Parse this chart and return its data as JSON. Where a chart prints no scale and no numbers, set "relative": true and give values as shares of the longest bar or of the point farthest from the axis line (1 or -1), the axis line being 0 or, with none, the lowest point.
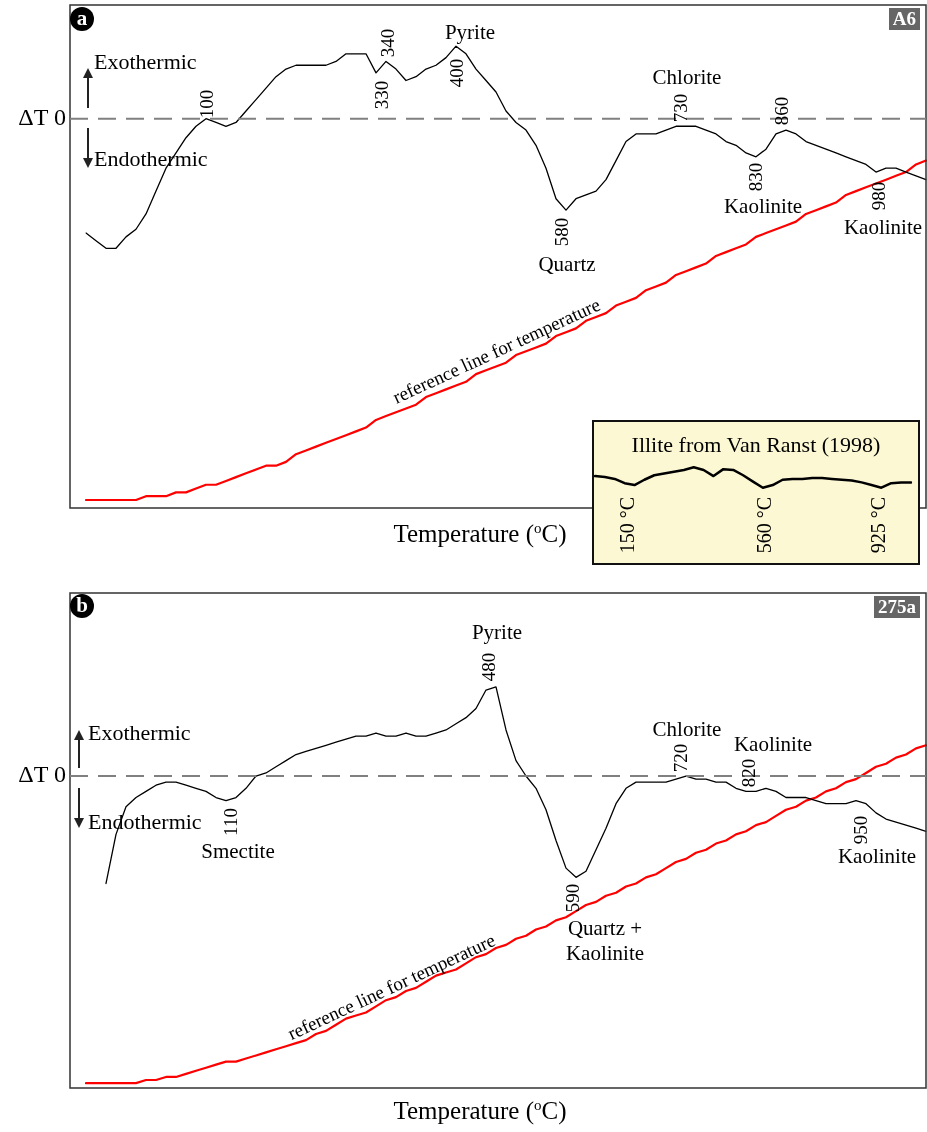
{
  "chart_data": [
    {
      "type": "line",
      "title": "a",
      "subtitle": "A6",
      "xlabel": "Temperature ($^{o}$C)",
      "relative": true,
      "tick_labels": false,
      "categories": [
        null,
        null,
        null,
        null,
        null,
        null,
        null,
        null,
        null,
        null,
        null,
        null,
        null,
        null,
        null,
        null,
        null,
        null,
        null,
        null,
        null,
        null,
        null,
        null,
        null,
        null,
        null,
        null,
        null,
        null,
        null,
        null,
        null,
        null,
        null,
        null,
        null,
        null,
        null,
        null,
        null,
        null,
        null,
        null,
        null,
        null,
        null,
        null,
        null,
        null,
        null,
        null,
        null,
        null,
        null,
        null,
        null,
        null,
        null,
        null,
        null,
        null,
        null,
        null,
        null,
        null,
        null,
        null,
        null,
        null,
        null,
        null,
        null,
        null,
        null,
        null,
        null,
        null,
        null,
        null,
        null,
        null,
        null,
        null,
        null
      ],
      "series": [
        {
          "color": "#000000",
          "values": [
            -0.3,
            -0.32,
            -0.34,
            -0.34,
            -0.31,
            -0.29,
            -0.25,
            -0.19,
            -0.13,
            -0.09,
            -0.05,
            -0.02,
            0,
            -0.01,
            -0.02,
            -0.01,
            0.02,
            0.05,
            0.08,
            0.11,
            0.13,
            0.14,
            0.14,
            0.14,
            0.14,
            0.15,
            0.17,
            0.17,
            0.17,
            0.12,
            0.15,
            0.13,
            0.1,
            0.11,
            0.13,
            0.14,
            0.16,
            0.19,
            0.17,
            0.13,
            0.1,
            0.07,
            0.02,
            -0.01,
            -0.03,
            -0.07,
            -0.13,
            -0.21,
            -0.24,
            -0.21,
            -0.2,
            -0.19,
            -0.16,
            -0.11,
            -0.06,
            -0.04,
            -0.04,
            -0.04,
            -0.03,
            -0.02,
            -0.02,
            -0.02,
            -0.03,
            -0.04,
            -0.06,
            -0.07,
            -0.09,
            -0.1,
            -0.08,
            -0.04,
            -0.03,
            -0.04,
            -0.06,
            -0.07,
            -0.08,
            -0.09,
            -0.1,
            -0.11,
            -0.12,
            -0.14,
            -0.13,
            -0.13,
            -0.14,
            -0.15,
            -0.16
          ]
        },
        {
          "color": "#ff0000",
          "values": [
            -1.0,
            -1.0,
            -1.0,
            -1.0,
            -1.0,
            -1.0,
            -0.99,
            -0.99,
            -0.99,
            -0.98,
            -0.98,
            -0.97,
            -0.96,
            -0.96,
            -0.95,
            -0.94,
            -0.93,
            -0.92,
            -0.91,
            -0.91,
            -0.9,
            -0.88,
            -0.87,
            -0.86,
            -0.85,
            -0.84,
            -0.83,
            -0.82,
            -0.81,
            -0.79,
            -0.78,
            -0.77,
            -0.76,
            -0.75,
            -0.73,
            -0.72,
            -0.71,
            -0.7,
            -0.69,
            -0.67,
            -0.66,
            -0.65,
            -0.64,
            -0.62,
            -0.61,
            -0.6,
            -0.59,
            -0.57,
            -0.56,
            -0.55,
            -0.53,
            -0.52,
            -0.51,
            -0.49,
            -0.48,
            -0.47,
            -0.45,
            -0.44,
            -0.43,
            -0.41,
            -0.4,
            -0.39,
            -0.38,
            -0.36,
            -0.35,
            -0.34,
            -0.33,
            -0.31,
            -0.3,
            -0.29,
            -0.28,
            -0.27,
            -0.25,
            -0.24,
            -0.23,
            -0.22,
            -0.2,
            -0.19,
            -0.18,
            -0.17,
            -0.16,
            -0.15,
            -0.14,
            -0.12,
            -0.11
          ]
        }
      ],
      "ref_lines": [
        {
          "axis": "y",
          "value": 0,
          "label": "ΔT 0",
          "color": "#808080",
          "line_style": "dashed"
        }
      ],
      "annotations": [
        "Exothermic",
        "Endothermic",
        "100",
        "330",
        "340",
        "Pyrite",
        "400",
        "580",
        "Quartz",
        "Chlorite",
        "730",
        "860",
        "830",
        "Kaolinite",
        "980",
        "Kaolinite",
        "reference line for temperature"
      ]
    },
    {
      "type": "line",
      "title": "Illite from Van Ranst (1998)",
      "relative": true,
      "tick_labels": false,
      "categories": [
        null,
        null,
        null,
        null,
        null,
        null,
        null,
        null,
        null,
        null,
        null,
        null,
        null,
        null,
        null,
        null,
        null,
        null,
        null,
        null,
        null,
        null,
        null,
        null,
        null,
        null,
        null,
        null,
        null,
        null,
        null,
        null,
        null
      ],
      "series": [
        {
          "color": "#000000",
          "values": [
            0.57,
            0.52,
            0.43,
            0.22,
            0.13,
            0.39,
            0.61,
            0.7,
            0.78,
            0.87,
            1.0,
            0.87,
            0.57,
            0.91,
            0.87,
            0.61,
            0.3,
            0.0,
            0.13,
            0.39,
            0.43,
            0.43,
            0.48,
            0.48,
            0.43,
            0.39,
            0.35,
            0.26,
            0.13,
            0.0,
            0.22,
            0.26,
            0.26
          ]
        }
      ],
      "annotations": [
        "150 °C",
        "560 °C",
        "925 °C"
      ]
    },
    {
      "type": "line",
      "title": "b",
      "subtitle": "275a",
      "xlabel": "Temperature ($^{o}$C)",
      "relative": true,
      "tick_labels": false,
      "categories": [
        null,
        null,
        null,
        null,
        null,
        null,
        null,
        null,
        null,
        null,
        null,
        null,
        null,
        null,
        null,
        null,
        null,
        null,
        null,
        null,
        null,
        null,
        null,
        null,
        null,
        null,
        null,
        null,
        null,
        null,
        null,
        null,
        null,
        null,
        null,
        null,
        null,
        null,
        null,
        null,
        null,
        null,
        null,
        null,
        null,
        null,
        null,
        null,
        null,
        null,
        null,
        null,
        null,
        null,
        null,
        null,
        null,
        null,
        null,
        null,
        null,
        null,
        null,
        null,
        null,
        null,
        null,
        null,
        null,
        null,
        null,
        null,
        null,
        null,
        null,
        null,
        null,
        null,
        null,
        null,
        null,
        null,
        null,
        null,
        null
      ],
      "series": [
        {
          "color": "#000000",
          "values": [
            null,
            null,
            -0.35,
            -0.19,
            -0.1,
            -0.07,
            -0.05,
            -0.03,
            -0.02,
            -0.02,
            -0.03,
            -0.04,
            -0.05,
            -0.07,
            -0.08,
            -0.07,
            -0.04,
            0,
            0.01,
            0.03,
            0.05,
            0.07,
            0.08,
            0.09,
            0.1,
            0.11,
            0.12,
            0.13,
            0.13,
            0.14,
            0.13,
            0.13,
            0.14,
            0.13,
            0.13,
            0.14,
            0.15,
            0.17,
            0.19,
            0.22,
            0.28,
            0.29,
            0.15,
            0.05,
            0,
            -0.04,
            -0.11,
            -0.21,
            -0.3,
            -0.33,
            -0.31,
            -0.24,
            -0.17,
            -0.09,
            -0.04,
            -0.02,
            -0.02,
            -0.02,
            -0.02,
            -0.01,
            0,
            -0.01,
            -0.01,
            -0.02,
            -0.02,
            -0.04,
            -0.05,
            -0.05,
            -0.04,
            -0.05,
            -0.07,
            -0.07,
            -0.07,
            -0.08,
            -0.09,
            -0.09,
            -0.09,
            -0.08,
            -0.09,
            -0.12,
            -0.14,
            -0.15,
            -0.16,
            -0.17,
            -0.18
          ]
        },
        {
          "color": "#ff0000",
          "values": [
            -1.0,
            -1.0,
            -1.0,
            -1.0,
            -1.0,
            -1.0,
            -0.99,
            -0.99,
            -0.98,
            -0.98,
            -0.97,
            -0.96,
            -0.95,
            -0.94,
            -0.93,
            -0.93,
            -0.92,
            -0.91,
            -0.9,
            -0.89,
            -0.88,
            -0.87,
            -0.86,
            -0.84,
            -0.83,
            -0.81,
            -0.79,
            -0.78,
            -0.77,
            -0.75,
            -0.73,
            -0.72,
            -0.7,
            -0.69,
            -0.67,
            -0.65,
            -0.64,
            -0.63,
            -0.61,
            -0.59,
            -0.58,
            -0.56,
            -0.55,
            -0.53,
            -0.52,
            -0.5,
            -0.49,
            -0.47,
            -0.46,
            -0.44,
            -0.42,
            -0.41,
            -0.39,
            -0.38,
            -0.36,
            -0.35,
            -0.33,
            -0.32,
            -0.3,
            -0.28,
            -0.27,
            -0.25,
            -0.24,
            -0.22,
            -0.21,
            -0.19,
            -0.18,
            -0.16,
            -0.15,
            -0.13,
            -0.11,
            -0.1,
            -0.08,
            -0.07,
            -0.05,
            -0.04,
            -0.02,
            -0.01,
            0.01,
            0.03,
            0.04,
            0.06,
            0.07,
            0.09,
            0.1
          ]
        }
      ],
      "ref_lines": [
        {
          "axis": "y",
          "value": 0,
          "label": "ΔT 0",
          "color": "#808080",
          "line_style": "dashed"
        }
      ],
      "annotations": [
        "Exothermic",
        "Endothermic",
        "110",
        "Smectite",
        "Pyrite",
        "480",
        "590",
        "Quartz +\nKaolinite",
        "Chlorite",
        "720",
        "Kaolinite",
        "820",
        "950",
        "Kaolinite",
        "reference line for temperature"
      ]
    }
  ]
}
